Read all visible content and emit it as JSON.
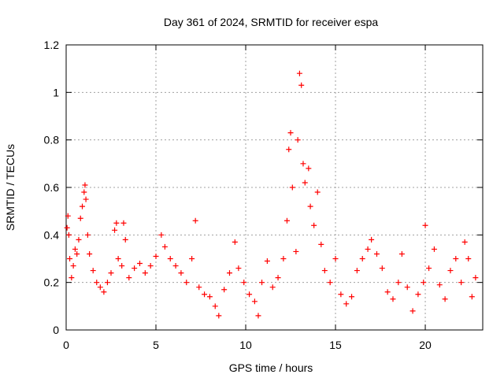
{
  "chart_data": {
    "type": "scatter",
    "title": "Day 361 of 2024, SRMTID for receiver espa",
    "xlabel": "GPS time / hours",
    "ylabel": "SRMTID / TECUs",
    "xlim": [
      0,
      23.2
    ],
    "ylim": [
      0,
      1.2
    ],
    "xticks": [
      0,
      5,
      10,
      15,
      20
    ],
    "xtick_labels": [
      "0",
      "5",
      "10",
      "15",
      "20"
    ],
    "yticks": [
      0,
      0.2,
      0.4,
      0.6,
      0.8,
      1.0,
      1.2
    ],
    "ytick_labels": [
      "0",
      "0.2",
      "0.4",
      "0.6",
      "0.8",
      "1",
      "1.2"
    ],
    "grid": true,
    "marker": "+",
    "color": "#ff0000",
    "series": [
      {
        "name": "SRMTID",
        "points": [
          [
            0.05,
            0.43
          ],
          [
            0.1,
            0.48
          ],
          [
            0.15,
            0.4
          ],
          [
            0.2,
            0.3
          ],
          [
            0.3,
            0.22
          ],
          [
            0.4,
            0.27
          ],
          [
            0.5,
            0.34
          ],
          [
            0.6,
            0.32
          ],
          [
            0.7,
            0.38
          ],
          [
            0.8,
            0.47
          ],
          [
            0.9,
            0.52
          ],
          [
            1.0,
            0.58
          ],
          [
            1.05,
            0.61
          ],
          [
            1.1,
            0.55
          ],
          [
            1.2,
            0.4
          ],
          [
            1.3,
            0.32
          ],
          [
            1.5,
            0.25
          ],
          [
            1.7,
            0.2
          ],
          [
            1.9,
            0.18
          ],
          [
            2.1,
            0.16
          ],
          [
            2.3,
            0.2
          ],
          [
            2.5,
            0.24
          ],
          [
            2.7,
            0.42
          ],
          [
            2.8,
            0.45
          ],
          [
            2.9,
            0.3
          ],
          [
            3.1,
            0.27
          ],
          [
            3.2,
            0.45
          ],
          [
            3.3,
            0.38
          ],
          [
            3.5,
            0.22
          ],
          [
            3.8,
            0.26
          ],
          [
            4.1,
            0.28
          ],
          [
            4.4,
            0.24
          ],
          [
            4.7,
            0.27
          ],
          [
            5.0,
            0.31
          ],
          [
            5.3,
            0.4
          ],
          [
            5.5,
            0.35
          ],
          [
            5.8,
            0.3
          ],
          [
            6.1,
            0.27
          ],
          [
            6.4,
            0.24
          ],
          [
            6.7,
            0.2
          ],
          [
            7.0,
            0.3
          ],
          [
            7.2,
            0.46
          ],
          [
            7.4,
            0.18
          ],
          [
            7.7,
            0.15
          ],
          [
            8.0,
            0.14
          ],
          [
            8.3,
            0.1
          ],
          [
            8.5,
            0.06
          ],
          [
            8.8,
            0.17
          ],
          [
            9.1,
            0.24
          ],
          [
            9.4,
            0.37
          ],
          [
            9.6,
            0.26
          ],
          [
            9.9,
            0.2
          ],
          [
            10.2,
            0.15
          ],
          [
            10.5,
            0.12
          ],
          [
            10.7,
            0.06
          ],
          [
            10.9,
            0.2
          ],
          [
            11.2,
            0.29
          ],
          [
            11.5,
            0.18
          ],
          [
            11.8,
            0.22
          ],
          [
            12.1,
            0.3
          ],
          [
            12.3,
            0.46
          ],
          [
            12.4,
            0.76
          ],
          [
            12.5,
            0.83
          ],
          [
            12.6,
            0.6
          ],
          [
            12.8,
            0.33
          ],
          [
            12.9,
            0.8
          ],
          [
            13.0,
            1.08
          ],
          [
            13.1,
            1.03
          ],
          [
            13.2,
            0.7
          ],
          [
            13.3,
            0.62
          ],
          [
            13.5,
            0.68
          ],
          [
            13.6,
            0.52
          ],
          [
            13.8,
            0.44
          ],
          [
            14.0,
            0.58
          ],
          [
            14.2,
            0.36
          ],
          [
            14.4,
            0.25
          ],
          [
            14.7,
            0.2
          ],
          [
            15.0,
            0.3
          ],
          [
            15.3,
            0.15
          ],
          [
            15.6,
            0.11
          ],
          [
            15.9,
            0.14
          ],
          [
            16.2,
            0.25
          ],
          [
            16.5,
            0.3
          ],
          [
            16.8,
            0.34
          ],
          [
            17.0,
            0.38
          ],
          [
            17.3,
            0.32
          ],
          [
            17.6,
            0.26
          ],
          [
            17.9,
            0.16
          ],
          [
            18.2,
            0.13
          ],
          [
            18.5,
            0.2
          ],
          [
            18.7,
            0.32
          ],
          [
            19.0,
            0.18
          ],
          [
            19.3,
            0.08
          ],
          [
            19.6,
            0.15
          ],
          [
            19.9,
            0.2
          ],
          [
            20.0,
            0.44
          ],
          [
            20.2,
            0.26
          ],
          [
            20.5,
            0.34
          ],
          [
            20.8,
            0.19
          ],
          [
            21.1,
            0.13
          ],
          [
            21.4,
            0.25
          ],
          [
            21.7,
            0.3
          ],
          [
            22.0,
            0.2
          ],
          [
            22.2,
            0.37
          ],
          [
            22.4,
            0.3
          ],
          [
            22.6,
            0.14
          ],
          [
            22.8,
            0.22
          ]
        ]
      }
    ]
  }
}
